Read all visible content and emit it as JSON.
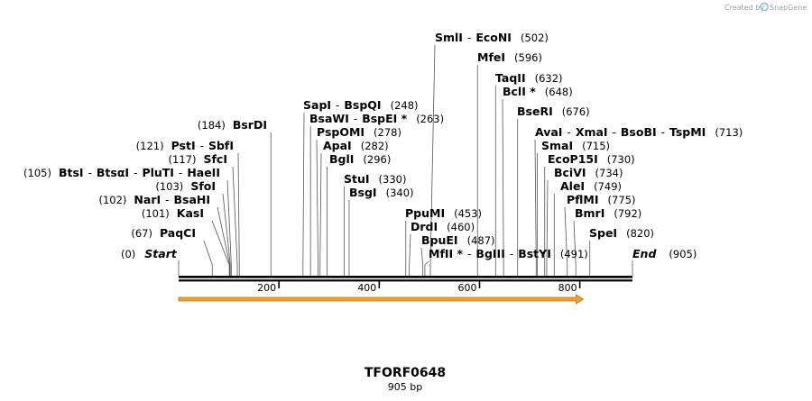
{
  "credit": {
    "prefix": "Created by",
    "brand": "SnapGene",
    "icon": "snapgene-logo-icon"
  },
  "sequence": {
    "name": "TFORF0648",
    "length_label": "905 bp",
    "length": 905
  },
  "ends": [
    {
      "label": "Start",
      "pos_text": "(0)",
      "pos": 0
    },
    {
      "label": "End",
      "pos_text": "(905)",
      "pos": 905
    }
  ],
  "ticks": [
    {
      "label": "200",
      "pos": 200
    },
    {
      "label": "400",
      "pos": 400
    },
    {
      "label": "600",
      "pos": 600
    },
    {
      "label": "800",
      "pos": 800
    }
  ],
  "feature": {
    "name": "orf-arrow",
    "start": 0,
    "end": 807,
    "color": "#f0a030",
    "edge": "#c07010"
  },
  "colors": {
    "backbone": "#000000",
    "leader": "#555555"
  },
  "sites_left": [
    {
      "pos": 67,
      "pos_text": "(67)",
      "names": [
        "PaqCI"
      ]
    },
    {
      "pos": 101,
      "pos_text": "(101)",
      "names": [
        "KasI"
      ]
    },
    {
      "pos": 102,
      "pos_text": "(102)",
      "names": [
        "NarI",
        "BsaHI"
      ]
    },
    {
      "pos": 103,
      "pos_text": "(103)",
      "names": [
        "SfoI"
      ]
    },
    {
      "pos": 105,
      "pos_text": "(105)",
      "names": [
        "BtsI",
        "BtsαI",
        "PluTI",
        "HaeII"
      ]
    },
    {
      "pos": 117,
      "pos_text": "(117)",
      "names": [
        "SfcI"
      ]
    },
    {
      "pos": 121,
      "pos_text": "(121)",
      "names": [
        "PstI",
        "SbfI"
      ]
    },
    {
      "pos": 184,
      "pos_text": "(184)",
      "names": [
        "BsrDI"
      ]
    }
  ],
  "sites_right": [
    {
      "pos": 248,
      "pos_text": "(248)",
      "names": [
        "SapI",
        "BspQI"
      ]
    },
    {
      "pos": 263,
      "pos_text": "(263)",
      "names": [
        "BsaWI",
        "BspEI *"
      ]
    },
    {
      "pos": 278,
      "pos_text": "(278)",
      "names": [
        "PspOMI"
      ]
    },
    {
      "pos": 282,
      "pos_text": "(282)",
      "names": [
        "ApaI"
      ]
    },
    {
      "pos": 296,
      "pos_text": "(296)",
      "names": [
        "BglI"
      ]
    },
    {
      "pos": 330,
      "pos_text": "(330)",
      "names": [
        "StuI"
      ]
    },
    {
      "pos": 340,
      "pos_text": "(340)",
      "names": [
        "BsgI"
      ]
    },
    {
      "pos": 502,
      "pos_text": "(502)",
      "names": [
        "SmlI",
        "EcoNI"
      ]
    },
    {
      "pos": 453,
      "pos_text": "(453)",
      "names": [
        "PpuMI"
      ]
    },
    {
      "pos": 460,
      "pos_text": "(460)",
      "names": [
        "DrdI"
      ]
    },
    {
      "pos": 487,
      "pos_text": "(487)",
      "names": [
        "BpuEI"
      ]
    },
    {
      "pos": 491,
      "pos_text": "(491)",
      "names": [
        "MfII *",
        "BgIII",
        "BstYI"
      ]
    },
    {
      "pos": 596,
      "pos_text": "(596)",
      "names": [
        "MfeI"
      ]
    },
    {
      "pos": 632,
      "pos_text": "(632)",
      "names": [
        "TaqII"
      ]
    },
    {
      "pos": 648,
      "pos_text": "(648)",
      "names": [
        "BclI *"
      ]
    },
    {
      "pos": 676,
      "pos_text": "(676)",
      "names": [
        "BseRI"
      ]
    },
    {
      "pos": 713,
      "pos_text": "(713)",
      "names": [
        "AvaI",
        "XmaI",
        "BsoBI",
        "TspMI"
      ]
    },
    {
      "pos": 715,
      "pos_text": "(715)",
      "names": [
        "SmaI"
      ]
    },
    {
      "pos": 730,
      "pos_text": "(730)",
      "names": [
        "EcoP15I"
      ]
    },
    {
      "pos": 734,
      "pos_text": "(734)",
      "names": [
        "BciVI"
      ]
    },
    {
      "pos": 749,
      "pos_text": "(749)",
      "names": [
        "AleI"
      ]
    },
    {
      "pos": 775,
      "pos_text": "(775)",
      "names": [
        "PflMI"
      ]
    },
    {
      "pos": 792,
      "pos_text": "(792)",
      "names": [
        "BmrI"
      ]
    },
    {
      "pos": 820,
      "pos_text": "(820)",
      "names": [
        "SpeI"
      ]
    }
  ]
}
